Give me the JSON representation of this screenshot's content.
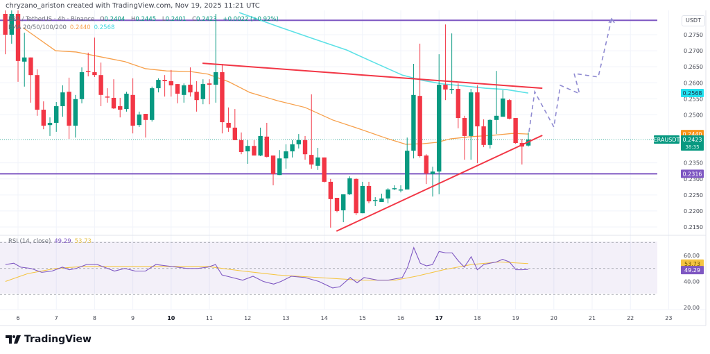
{
  "attribution": "chryzano_ariston created with TradingView.com, Nov 19, 2025 11:21 UTC",
  "legend": {
    "symbol": "ERA / TetherUS · 4h · Binance",
    "o_label": "O",
    "o": "0.2404",
    "h_label": "H",
    "h": "0.2445",
    "l_label": "L",
    "l": "0.2401",
    "c_label": "C",
    "c": "0.2423",
    "change": "+0.0022 (+0.92%)"
  },
  "ema_legend": {
    "label": "EMA 20/50/100/200",
    "value_orange": "0.2440",
    "value_cyan": "0.2568"
  },
  "rsi_legend": {
    "label": "RSI (14, close)",
    "value_rsi": "49.29",
    "value_ma": "53.73"
  },
  "price_axis": {
    "unit": "USDT",
    "ticks": [
      "0.2750",
      "0.2700",
      "0.2650",
      "0.2600",
      "0.2550",
      "0.2500",
      "0.2350",
      "0.2300",
      "0.2250",
      "0.2200",
      "0.2150"
    ],
    "labels": {
      "ema_cyan": "0.2568",
      "ema_orange": "0.2440",
      "symbol_tag": "ERAUSDT",
      "last_price": "0.2423",
      "countdown": "38:35",
      "support": "0.2316"
    }
  },
  "rsi_axis": {
    "ticks": [
      "60.00",
      "40.00",
      "20.00"
    ],
    "labels": {
      "ma": "53.73",
      "rsi": "49.29"
    }
  },
  "time_axis": {
    "ticks": [
      "6",
      "7",
      "8",
      "9",
      "10",
      "11",
      "12",
      "13",
      "14",
      "15",
      "16",
      "17",
      "18",
      "19",
      "20",
      "21",
      "22",
      "23"
    ],
    "bold": [
      "10",
      "17"
    ]
  },
  "logo": "TradingView",
  "colors": {
    "up": "#089981",
    "down": "#f23645",
    "ema_orange": "#f7a04b",
    "ema_cyan": "#5ce1e6",
    "level": "#7e57c2",
    "trendline": "#f23645",
    "projection": "#8f8ad1",
    "rsi": "#7e57c2",
    "rsi_ma": "#f5c542"
  },
  "chart_data": {
    "type": "candlestick",
    "interval": "4h",
    "x_unit": "day of November 2025",
    "first_candle_day": 5.667,
    "ylim": [
      0.213,
      0.283
    ],
    "grid": true,
    "candles_ohlc": [
      [
        0.2815,
        0.283,
        0.2689,
        0.275
      ],
      [
        0.275,
        0.283,
        0.2722,
        0.2815
      ],
      [
        0.2815,
        0.283,
        0.2603,
        0.2668
      ],
      [
        0.2666,
        0.2756,
        0.2588,
        0.2679
      ],
      [
        0.2679,
        0.2679,
        0.2538,
        0.2624
      ],
      [
        0.2624,
        0.2642,
        0.2497,
        0.2516
      ],
      [
        0.2516,
        0.2542,
        0.2455,
        0.2466
      ],
      [
        0.2468,
        0.2492,
        0.2434,
        0.2475
      ],
      [
        0.2475,
        0.254,
        0.2447,
        0.2527
      ],
      [
        0.2527,
        0.2592,
        0.2494,
        0.257
      ],
      [
        0.2572,
        0.2616,
        0.2425,
        0.2466
      ],
      [
        0.2466,
        0.2562,
        0.2429,
        0.2549
      ],
      [
        0.2549,
        0.2648,
        0.2536,
        0.2633
      ],
      [
        0.2637,
        0.2694,
        0.262,
        0.2635
      ],
      [
        0.2633,
        0.2741,
        0.2618,
        0.2624
      ],
      [
        0.2624,
        0.2663,
        0.2527,
        0.2562
      ],
      [
        0.2557,
        0.2583,
        0.2538,
        0.2555
      ],
      [
        0.2553,
        0.2611,
        0.2518,
        0.252
      ],
      [
        0.2527,
        0.2553,
        0.2492,
        0.2516
      ],
      [
        0.2518,
        0.2572,
        0.251,
        0.2566
      ],
      [
        0.2562,
        0.2614,
        0.2442,
        0.2466
      ],
      [
        0.2468,
        0.251,
        0.2462,
        0.2501
      ],
      [
        0.2503,
        0.2503,
        0.2429,
        0.2484
      ],
      [
        0.2484,
        0.2588,
        0.2479,
        0.2583
      ],
      [
        0.2583,
        0.2614,
        0.257,
        0.2609
      ],
      [
        0.2609,
        0.2624,
        0.2557,
        0.2605
      ],
      [
        0.2605,
        0.264,
        0.2557,
        0.2592
      ],
      [
        0.2596,
        0.2596,
        0.2536,
        0.2566
      ],
      [
        0.2562,
        0.2598,
        0.2538,
        0.2592
      ],
      [
        0.2594,
        0.2648,
        0.2557,
        0.257
      ],
      [
        0.2572,
        0.2605,
        0.251,
        0.2546
      ],
      [
        0.2549,
        0.2611,
        0.2533,
        0.2596
      ],
      [
        0.2598,
        0.2611,
        0.2533,
        0.2594
      ],
      [
        0.2594,
        0.2815,
        0.2538,
        0.2633
      ],
      [
        0.2633,
        0.2659,
        0.2442,
        0.2477
      ],
      [
        0.2475,
        0.2523,
        0.2447,
        0.246
      ],
      [
        0.246,
        0.2518,
        0.2421,
        0.2421
      ],
      [
        0.2421,
        0.2445,
        0.2377,
        0.2384
      ],
      [
        0.2386,
        0.2421,
        0.2347,
        0.2403
      ],
      [
        0.2403,
        0.2421,
        0.2373,
        0.2373
      ],
      [
        0.2373,
        0.246,
        0.2371,
        0.2434
      ],
      [
        0.2432,
        0.2475,
        0.2367,
        0.2369
      ],
      [
        0.2373,
        0.2373,
        0.228,
        0.2315
      ],
      [
        0.2312,
        0.239,
        0.2312,
        0.2364
      ],
      [
        0.2364,
        0.2408,
        0.2332,
        0.2386
      ],
      [
        0.2386,
        0.2421,
        0.2367,
        0.2408
      ],
      [
        0.2408,
        0.244,
        0.2395,
        0.2421
      ],
      [
        0.2421,
        0.2434,
        0.236,
        0.2377
      ],
      [
        0.2375,
        0.2564,
        0.2332,
        0.2345
      ],
      [
        0.2341,
        0.2397,
        0.2328,
        0.2367
      ],
      [
        0.2367,
        0.2367,
        0.2289,
        0.2291
      ],
      [
        0.2291,
        0.23,
        0.2148,
        0.2237
      ],
      [
        0.2241,
        0.2241,
        0.2196,
        0.22
      ],
      [
        0.2202,
        0.2252,
        0.2165,
        0.2252
      ],
      [
        0.2252,
        0.2308,
        0.225,
        0.2302
      ],
      [
        0.23,
        0.2302,
        0.2187,
        0.2193
      ],
      [
        0.2193,
        0.2291,
        0.2193,
        0.2278
      ],
      [
        0.2278,
        0.2291,
        0.2224,
        0.223
      ],
      [
        0.2234,
        0.2243,
        0.2215,
        0.2234
      ],
      [
        0.2228,
        0.2254,
        0.2228,
        0.2239
      ],
      [
        0.2239,
        0.2271,
        0.2224,
        0.2267
      ],
      [
        0.2269,
        0.228,
        0.2265,
        0.2271
      ],
      [
        0.2267,
        0.228,
        0.2258,
        0.2267
      ],
      [
        0.2267,
        0.2429,
        0.2267,
        0.2388
      ],
      [
        0.2388,
        0.2659,
        0.2364,
        0.2562
      ],
      [
        0.2559,
        0.2722,
        0.2367,
        0.2371
      ],
      [
        0.2373,
        0.2377,
        0.2284,
        0.2317
      ],
      [
        0.2315,
        0.2338,
        0.2245,
        0.2323
      ],
      [
        0.2323,
        0.2689,
        0.2252,
        0.2594
      ],
      [
        0.2594,
        0.2782,
        0.2546,
        0.2579
      ],
      [
        0.2581,
        0.2754,
        0.2566,
        0.2581
      ],
      [
        0.2581,
        0.2598,
        0.2458,
        0.249
      ],
      [
        0.249,
        0.2497,
        0.236,
        0.2434
      ],
      [
        0.2434,
        0.2581,
        0.236,
        0.257
      ],
      [
        0.257,
        0.2592,
        0.2349,
        0.2464
      ],
      [
        0.2464,
        0.2486,
        0.2399,
        0.2406
      ],
      [
        0.2406,
        0.2486,
        0.2395,
        0.2484
      ],
      [
        0.2484,
        0.2637,
        0.244,
        0.2497
      ],
      [
        0.2494,
        0.2577,
        0.2494,
        0.2551
      ],
      [
        0.2546,
        0.2549,
        0.2486,
        0.2488
      ],
      [
        0.249,
        0.249,
        0.241,
        0.2412
      ],
      [
        0.2412,
        0.2425,
        0.2345,
        0.2401
      ],
      [
        0.2404,
        0.2445,
        0.2401,
        0.2423
      ]
    ],
    "ema_orange": [
      [
        6.13,
        0.2772
      ],
      [
        6.34,
        0.2754
      ],
      [
        6.98,
        0.27
      ],
      [
        7.52,
        0.2696
      ],
      [
        8.07,
        0.2683
      ],
      [
        8.79,
        0.2666
      ],
      [
        9.33,
        0.2644
      ],
      [
        9.88,
        0.2637
      ],
      [
        10.51,
        0.2635
      ],
      [
        10.96,
        0.2627
      ],
      [
        11.51,
        0.2603
      ],
      [
        12.05,
        0.257
      ],
      [
        12.78,
        0.2544
      ],
      [
        13.5,
        0.2523
      ],
      [
        14.22,
        0.2484
      ],
      [
        14.95,
        0.2455
      ],
      [
        15.67,
        0.2425
      ],
      [
        16.13,
        0.2408
      ],
      [
        16.58,
        0.241
      ],
      [
        16.94,
        0.2414
      ],
      [
        17.3,
        0.2425
      ],
      [
        17.85,
        0.2432
      ],
      [
        18.39,
        0.2436
      ],
      [
        18.93,
        0.2442
      ],
      [
        19.33,
        0.244
      ]
    ],
    "ema_cyan": [
      [
        11.78,
        0.2819
      ],
      [
        12.78,
        0.2776
      ],
      [
        13.68,
        0.2739
      ],
      [
        14.59,
        0.2702
      ],
      [
        15.31,
        0.2663
      ],
      [
        16.04,
        0.2624
      ],
      [
        16.58,
        0.2607
      ],
      [
        17.12,
        0.2596
      ],
      [
        17.67,
        0.259
      ],
      [
        18.21,
        0.2583
      ],
      [
        18.75,
        0.2579
      ],
      [
        19.33,
        0.2568
      ]
    ],
    "levels": [
      0.2795,
      0.2316
    ],
    "trendlines": [
      [
        [
          10.82,
          0.2661
        ],
        [
          19.7,
          0.2583
        ]
      ],
      [
        [
          14.32,
          0.2137
        ],
        [
          19.7,
          0.2436
        ]
      ]
    ],
    "projection": [
      [
        19.35,
        0.2447
      ],
      [
        19.5,
        0.2572
      ],
      [
        20.0,
        0.2462
      ],
      [
        20.17,
        0.2592
      ],
      [
        20.67,
        0.2566
      ],
      [
        20.53,
        0.2629
      ],
      [
        21.16,
        0.2618
      ],
      [
        21.51,
        0.28
      ]
    ],
    "rsi": {
      "ylim": [
        20,
        80
      ],
      "bands": [
        70,
        50,
        30
      ],
      "values": [
        [
          5.67,
          53
        ],
        [
          5.89,
          54
        ],
        [
          6.07,
          51
        ],
        [
          6.34,
          50
        ],
        [
          6.62,
          47
        ],
        [
          6.89,
          48
        ],
        [
          7.16,
          51
        ],
        [
          7.34,
          49
        ],
        [
          7.52,
          50
        ],
        [
          7.79,
          53
        ],
        [
          8.07,
          53
        ],
        [
          8.34,
          50
        ],
        [
          8.52,
          48
        ],
        [
          8.79,
          50
        ],
        [
          9.06,
          48
        ],
        [
          9.33,
          48
        ],
        [
          9.6,
          53
        ],
        [
          9.88,
          52
        ],
        [
          10.15,
          51
        ],
        [
          10.42,
          50
        ],
        [
          10.69,
          50
        ],
        [
          10.96,
          51
        ],
        [
          11.16,
          53
        ],
        [
          11.33,
          45
        ],
        [
          11.6,
          43
        ],
        [
          11.87,
          41
        ],
        [
          12.14,
          44
        ],
        [
          12.41,
          40
        ],
        [
          12.68,
          38
        ],
        [
          12.87,
          40
        ],
        [
          13.14,
          44
        ],
        [
          13.5,
          43
        ],
        [
          13.86,
          40
        ],
        [
          14.22,
          35
        ],
        [
          14.41,
          36
        ],
        [
          14.68,
          43
        ],
        [
          14.86,
          39
        ],
        [
          15.04,
          43
        ],
        [
          15.4,
          41
        ],
        [
          15.67,
          41
        ],
        [
          16.04,
          43
        ],
        [
          16.18,
          51
        ],
        [
          16.34,
          66
        ],
        [
          16.51,
          54
        ],
        [
          16.67,
          52
        ],
        [
          16.83,
          53
        ],
        [
          17.0,
          63
        ],
        [
          17.17,
          62
        ],
        [
          17.34,
          62
        ],
        [
          17.5,
          56
        ],
        [
          17.66,
          51
        ],
        [
          17.84,
          59
        ],
        [
          18.0,
          49
        ],
        [
          18.17,
          53
        ],
        [
          18.33,
          54
        ],
        [
          18.5,
          55
        ],
        [
          18.66,
          57
        ],
        [
          18.84,
          55
        ],
        [
          19.01,
          49
        ],
        [
          19.17,
          49
        ],
        [
          19.33,
          49.29
        ]
      ],
      "ma": [
        [
          5.67,
          40
        ],
        [
          6.25,
          46
        ],
        [
          6.98,
          50
        ],
        [
          7.7,
          51.5
        ],
        [
          9.15,
          51.5
        ],
        [
          10.96,
          51.5
        ],
        [
          11.87,
          48
        ],
        [
          12.78,
          45
        ],
        [
          13.86,
          43
        ],
        [
          14.95,
          41
        ],
        [
          15.86,
          41
        ],
        [
          16.4,
          44
        ],
        [
          17.12,
          49
        ],
        [
          17.85,
          53
        ],
        [
          18.57,
          55
        ],
        [
          19.33,
          53.73
        ]
      ]
    }
  }
}
